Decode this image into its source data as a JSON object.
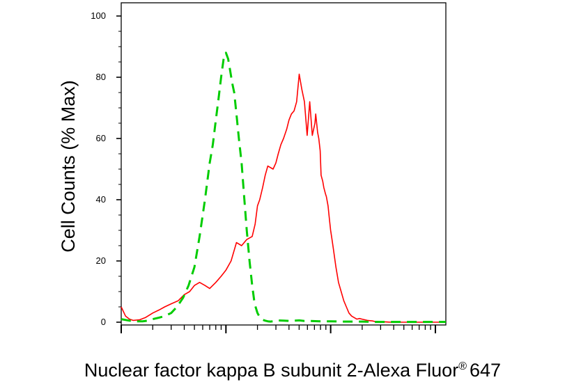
{
  "chart_data": {
    "type": "line",
    "title": "",
    "xlabel": "Nuclear factor kappa B subunit 2-Alexa Fluor",
    "xlabel_superscript": "®",
    "xlabel_suffix": "647",
    "ylabel": "Cell Counts (% Max)",
    "x_scale": "log",
    "x_ticks_labeled": false,
    "ylim": [
      0,
      100
    ],
    "y_ticks": [
      "0",
      "20",
      "40",
      "60",
      "80",
      "100"
    ],
    "grid": false,
    "legend": "none",
    "series": [
      {
        "color": "#ff0000",
        "style": "solid",
        "x": [
          1.0,
          1.1,
          1.2,
          1.3,
          1.5,
          1.7,
          2.0,
          2.3,
          2.6,
          3.0,
          3.5,
          4.0,
          4.5,
          5.0,
          5.6,
          6.3,
          7.0,
          8.0,
          9.0,
          10.0,
          11.2,
          12.6,
          14.1,
          15.8,
          17.8,
          19.0,
          20.0,
          21.0,
          22.4,
          23.7,
          25.1,
          28.2,
          30.0,
          31.6,
          33.5,
          35.5,
          38.0,
          40.0,
          42.2,
          44.7,
          47.3,
          50.1,
          53.1,
          56.2,
          59.6,
          63.1,
          66.8,
          70.8,
          72.0,
          75.0,
          77.0,
          79.4,
          81.0,
          84.1,
          86.0,
          89.1,
          91.0,
          94.4,
          97.0,
          100.0,
          103.0,
          106.0,
          112.2,
          118.9,
          125.9,
          133.4,
          141.3,
          149.6,
          158.5,
          168.0,
          177.8,
          188.4,
          199.5,
          211.3,
          223.9,
          237.1,
          251.2,
          266.1,
          281.8,
          298.5,
          316.2,
          335.0,
          354.8,
          375.8,
          398.1,
          421.7,
          446.7,
          473.2,
          501.2,
          531.0,
          562.3,
          595.7,
          631.0,
          668.3,
          707.9,
          750.0,
          794.3,
          841.4,
          891.3,
          944.1,
          1000.0,
          1059.3,
          1122.0,
          1188.5,
          1258.9
        ],
        "y": [
          5,
          2,
          1,
          0.6,
          0.8,
          1.5,
          3,
          4,
          5,
          6,
          7,
          9,
          10,
          12,
          13,
          12,
          11,
          13,
          15,
          17,
          20,
          26,
          25,
          27,
          28,
          32,
          38,
          40,
          44,
          48,
          51,
          50,
          52,
          55,
          58,
          60,
          63,
          66,
          68,
          69,
          72,
          81,
          76,
          72,
          61,
          72,
          61,
          65,
          68,
          62,
          60,
          56,
          48,
          46,
          44,
          42,
          41,
          38,
          34,
          30,
          27,
          24,
          18,
          13,
          10,
          7,
          5,
          3,
          2,
          1.5,
          1,
          1.2,
          1,
          0.8,
          0.6,
          0.5,
          0.4,
          0.2,
          0.2,
          0.1,
          0.1,
          0.1,
          0.05,
          0,
          0,
          0,
          0,
          0,
          0,
          0,
          0,
          0,
          0,
          0,
          0,
          0,
          0,
          0,
          0,
          0,
          0,
          0,
          0,
          0,
          0
        ]
      },
      {
        "color": "#00cc00",
        "style": "dashed",
        "x": [
          1.0,
          1.2,
          1.4,
          1.6,
          1.8,
          2.0,
          2.3,
          2.6,
          3.0,
          3.4,
          3.9,
          4.4,
          5.0,
          5.6,
          6.3,
          7.0,
          7.5,
          8.0,
          8.5,
          9.0,
          9.5,
          10.0,
          10.5,
          11.0,
          11.5,
          12.0,
          12.6,
          13.3,
          14.1,
          15.0,
          15.8,
          16.8,
          17.8,
          18.8,
          20.0,
          21.1,
          22.4,
          23.7,
          25.1,
          26.6,
          28.2,
          30.0,
          31.6,
          35.5,
          39.8,
          44.7,
          50.1,
          56.2,
          63.1,
          79.4,
          100.0,
          126.0,
          158.5,
          199.5,
          251.2,
          316.2,
          398.1,
          501.2,
          631.0,
          794.3,
          1000.0,
          1258.9
        ],
        "y": [
          1,
          0.5,
          0.3,
          0.3,
          0.5,
          1,
          1.5,
          2,
          3,
          5,
          8,
          12,
          18,
          28,
          40,
          52,
          58,
          66,
          73,
          80,
          86,
          88,
          86,
          82,
          78,
          75,
          68,
          60,
          52,
          40,
          30,
          20,
          12,
          6,
          3,
          1.5,
          0.8,
          0.5,
          0.3,
          0.2,
          0.3,
          0.5,
          0.6,
          0.5,
          0.4,
          0.5,
          0.6,
          0.4,
          0.4,
          0.3,
          0.3,
          0.2,
          0.2,
          0.2,
          0.1,
          0.1,
          0.1,
          0.1,
          0.1,
          0.1,
          0.1,
          0.1
        ]
      }
    ]
  }
}
